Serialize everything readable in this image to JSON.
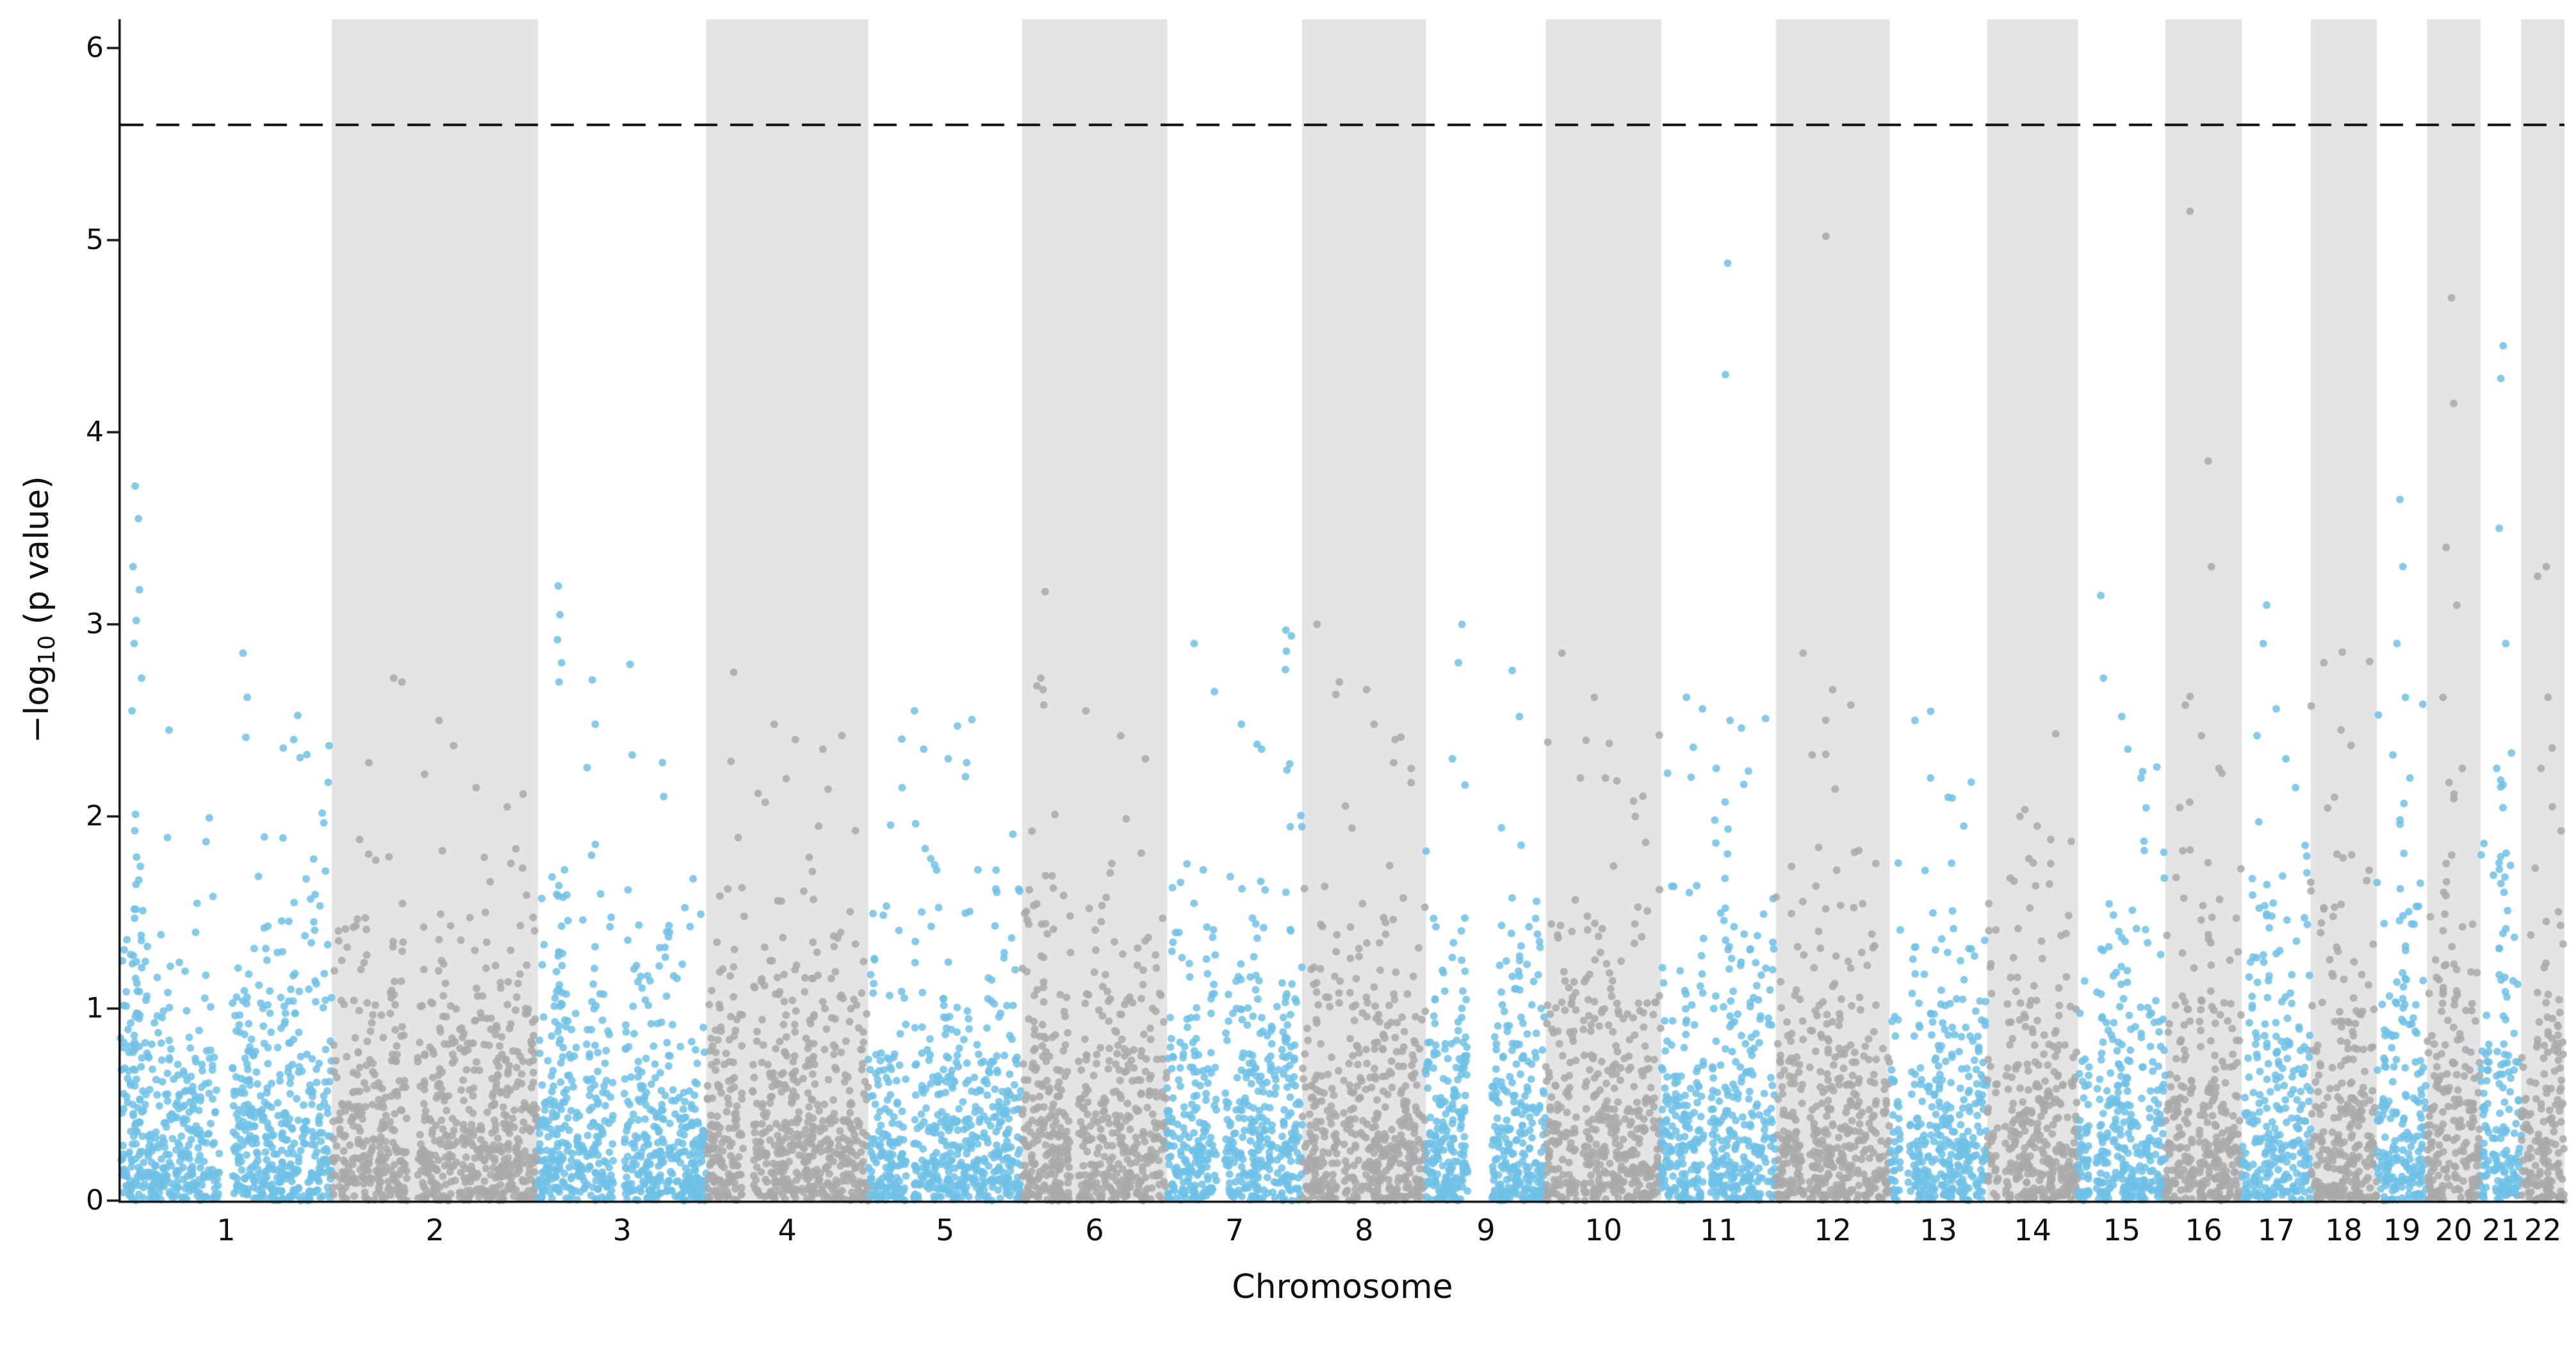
{
  "figure": {
    "background": "#ffffff"
  },
  "chart_data": {
    "type": "scatter",
    "variant": "manhattan",
    "title": "",
    "xlabel": "Chromosome",
    "ylabel": "−log10 (p value)",
    "ylabel_parts": {
      "prefix": "−log",
      "sub": "10",
      "suffix": " (p value)"
    },
    "ylim": [
      0,
      6.15
    ],
    "yticks": [
      0,
      1,
      2,
      3,
      4,
      5,
      6
    ],
    "grid": false,
    "legend": null,
    "threshold_line": {
      "value": 5.6,
      "style": "dashed",
      "color": "#111111"
    },
    "colors": {
      "odd_chromosome_points": "#6FC1E6",
      "even_chromosome_points": "#A9A9A9",
      "even_chromosome_band": "#E4E4E4",
      "axis": "#111111",
      "background": "#ffffff"
    },
    "point_radius": 6,
    "point_alpha": 0.85,
    "seed": 7,
    "chromosomes": [
      {
        "label": "1",
        "size_mb": 249,
        "color": "blue",
        "n_points": 797,
        "centromere": 0.5,
        "gap": 0.06,
        "top_points": [
          [
            0.07,
            3.72
          ],
          [
            0.085,
            3.55
          ],
          [
            0.06,
            3.3
          ],
          [
            0.09,
            3.18
          ],
          [
            0.075,
            3.02
          ],
          [
            0.065,
            2.9
          ],
          [
            0.1,
            2.72
          ],
          [
            0.055,
            2.55
          ],
          [
            0.23,
            2.45
          ],
          [
            0.58,
            2.85
          ],
          [
            0.6,
            2.62
          ],
          [
            0.82,
            2.4
          ]
        ]
      },
      {
        "label": "2",
        "size_mb": 243,
        "color": "gray",
        "n_points": 778,
        "centromere": 0.39,
        "gap": 0.05,
        "top_points": [
          [
            0.3,
            2.72
          ],
          [
            0.34,
            2.7
          ],
          [
            0.52,
            2.5
          ],
          [
            0.18,
            2.28
          ],
          [
            0.45,
            2.22
          ],
          [
            0.7,
            2.15
          ],
          [
            0.85,
            2.05
          ]
        ]
      },
      {
        "label": "3",
        "size_mb": 198,
        "color": "blue",
        "n_points": 634,
        "centromere": 0.48,
        "gap": 0.06,
        "top_points": [
          [
            0.12,
            3.2
          ],
          [
            0.13,
            3.05
          ],
          [
            0.115,
            2.92
          ],
          [
            0.14,
            2.8
          ],
          [
            0.125,
            2.7
          ],
          [
            0.34,
            2.48
          ],
          [
            0.56,
            2.32
          ],
          [
            0.74,
            2.28
          ]
        ]
      },
      {
        "label": "4",
        "size_mb": 191,
        "color": "gray",
        "n_points": 611,
        "centromere": 0.26,
        "gap": 0.05,
        "top_points": [
          [
            0.17,
            2.75
          ],
          [
            0.42,
            2.48
          ],
          [
            0.55,
            2.4
          ],
          [
            0.72,
            2.35
          ],
          [
            0.32,
            2.12
          ]
        ]
      },
      {
        "label": "5",
        "size_mb": 181,
        "color": "blue",
        "n_points": 579,
        "centromere": 0.27,
        "gap": 0.05,
        "top_points": [
          [
            0.3,
            2.55
          ],
          [
            0.36,
            2.35
          ],
          [
            0.52,
            2.3
          ],
          [
            0.64,
            2.28
          ],
          [
            0.22,
            2.15
          ]
        ]
      },
      {
        "label": "6",
        "size_mb": 171,
        "color": "gray",
        "n_points": 547,
        "centromere": 0.36,
        "gap": 0.05,
        "top_points": [
          [
            0.16,
            3.17
          ],
          [
            0.13,
            2.72
          ],
          [
            0.145,
            2.66
          ],
          [
            0.15,
            2.58
          ],
          [
            0.44,
            2.55
          ],
          [
            0.68,
            2.42
          ],
          [
            0.85,
            2.3
          ]
        ]
      },
      {
        "label": "7",
        "size_mb": 159,
        "color": "blue",
        "n_points": 509,
        "centromere": 0.4,
        "gap": 0.06,
        "top_points": [
          [
            0.88,
            2.97
          ],
          [
            0.92,
            2.94
          ],
          [
            0.2,
            2.9
          ],
          [
            0.35,
            2.65
          ],
          [
            0.55,
            2.48
          ],
          [
            0.7,
            2.35
          ]
        ]
      },
      {
        "label": "8",
        "size_mb": 146,
        "color": "gray",
        "n_points": 467,
        "centromere": 0.31,
        "gap": 0.05,
        "top_points": [
          [
            0.12,
            3.0
          ],
          [
            0.3,
            2.7
          ],
          [
            0.52,
            2.66
          ],
          [
            0.58,
            2.48
          ],
          [
            0.75,
            2.4
          ],
          [
            0.88,
            2.25
          ]
        ]
      },
      {
        "label": "9",
        "size_mb": 141,
        "color": "blue",
        "n_points": 451,
        "centromere": 0.45,
        "gap": 0.2,
        "top_points": [
          [
            0.3,
            3.0
          ],
          [
            0.27,
            2.8
          ],
          [
            0.72,
            2.76
          ],
          [
            0.78,
            2.52
          ],
          [
            0.22,
            2.3
          ]
        ]
      },
      {
        "label": "10",
        "size_mb": 136,
        "color": "gray",
        "n_points": 435,
        "centromere": 0.3,
        "gap": 0.05,
        "top_points": [
          [
            0.14,
            2.85
          ],
          [
            0.42,
            2.62
          ],
          [
            0.55,
            2.38
          ],
          [
            0.3,
            2.2
          ],
          [
            0.76,
            2.08
          ]
        ]
      },
      {
        "label": "11",
        "size_mb": 135,
        "color": "blue",
        "n_points": 432,
        "centromere": 0.4,
        "gap": 0.06,
        "top_points": [
          [
            0.58,
            4.88
          ],
          [
            0.56,
            4.3
          ],
          [
            0.22,
            2.62
          ],
          [
            0.36,
            2.56
          ],
          [
            0.6,
            2.5
          ],
          [
            0.7,
            2.46
          ],
          [
            0.28,
            2.36
          ],
          [
            0.48,
            2.25
          ]
        ]
      },
      {
        "label": "12",
        "size_mb": 134,
        "color": "gray",
        "n_points": 429,
        "centromere": 0.27,
        "gap": 0.05,
        "top_points": [
          [
            0.44,
            5.02
          ],
          [
            0.24,
            2.85
          ],
          [
            0.5,
            2.66
          ],
          [
            0.66,
            2.58
          ],
          [
            0.32,
            2.32
          ]
        ]
      },
      {
        "label": "13",
        "size_mb": 115,
        "color": "blue",
        "n_points": 368,
        "centromere": 0.15,
        "gap": 0.08,
        "top_points": [
          [
            0.26,
            2.5
          ],
          [
            0.42,
            2.2
          ],
          [
            0.6,
            2.1
          ],
          [
            0.76,
            1.95
          ]
        ]
      },
      {
        "label": "14",
        "size_mb": 107,
        "color": "gray",
        "n_points": 342,
        "centromere": 0.16,
        "gap": 0.07,
        "top_points": [
          [
            0.36,
            2.0
          ],
          [
            0.55,
            1.95
          ],
          [
            0.7,
            1.88
          ],
          [
            0.46,
            1.78
          ]
        ]
      },
      {
        "label": "15",
        "size_mb": 103,
        "color": "blue",
        "n_points": 330,
        "centromere": 0.17,
        "gap": 0.08,
        "top_points": [
          [
            0.26,
            3.15
          ],
          [
            0.29,
            2.72
          ],
          [
            0.5,
            2.52
          ],
          [
            0.57,
            2.35
          ],
          [
            0.72,
            2.2
          ]
        ]
      },
      {
        "label": "16",
        "size_mb": 90,
        "color": "gray",
        "n_points": 288,
        "centromere": 0.41,
        "gap": 0.07,
        "top_points": [
          [
            0.32,
            5.15
          ],
          [
            0.56,
            3.85
          ],
          [
            0.6,
            3.3
          ],
          [
            0.26,
            2.58
          ],
          [
            0.47,
            2.42
          ],
          [
            0.7,
            2.25
          ]
        ]
      },
      {
        "label": "17",
        "size_mb": 81,
        "color": "blue",
        "n_points": 259,
        "centromere": 0.3,
        "gap": 0.05,
        "top_points": [
          [
            0.36,
            3.1
          ],
          [
            0.31,
            2.9
          ],
          [
            0.5,
            2.56
          ],
          [
            0.22,
            2.42
          ],
          [
            0.64,
            2.3
          ],
          [
            0.78,
            2.15
          ]
        ]
      },
      {
        "label": "18",
        "size_mb": 78,
        "color": "gray",
        "n_points": 250,
        "centromere": 0.22,
        "gap": 0.05,
        "top_points": [
          [
            0.2,
            2.8
          ],
          [
            0.46,
            2.45
          ],
          [
            0.36,
            2.1
          ],
          [
            0.62,
            1.8
          ]
        ]
      },
      {
        "label": "19",
        "size_mb": 59,
        "color": "blue",
        "n_points": 189,
        "centromere": 0.45,
        "gap": 0.06,
        "top_points": [
          [
            0.46,
            3.65
          ],
          [
            0.52,
            3.3
          ],
          [
            0.4,
            2.9
          ],
          [
            0.57,
            2.62
          ],
          [
            0.32,
            2.32
          ],
          [
            0.66,
            2.2
          ]
        ]
      },
      {
        "label": "20",
        "size_mb": 63,
        "color": "gray",
        "n_points": 202,
        "centromere": 0.45,
        "gap": 0.05,
        "top_points": [
          [
            0.46,
            4.7
          ],
          [
            0.5,
            4.15
          ],
          [
            0.36,
            3.4
          ],
          [
            0.56,
            3.1
          ],
          [
            0.3,
            2.62
          ],
          [
            0.66,
            2.25
          ]
        ]
      },
      {
        "label": "21",
        "size_mb": 48,
        "color": "blue",
        "n_points": 154,
        "centromere": 0.25,
        "gap": 0.08,
        "top_points": [
          [
            0.56,
            4.45
          ],
          [
            0.5,
            4.28
          ],
          [
            0.46,
            3.5
          ],
          [
            0.62,
            2.9
          ],
          [
            0.4,
            2.25
          ]
        ]
      },
      {
        "label": "22",
        "size_mb": 51,
        "color": "gray",
        "n_points": 163,
        "centromere": 0.28,
        "gap": 0.08,
        "top_points": [
          [
            0.58,
            3.3
          ],
          [
            0.38,
            3.25
          ],
          [
            0.62,
            2.62
          ],
          [
            0.46,
            2.25
          ],
          [
            0.72,
            2.05
          ]
        ]
      }
    ]
  }
}
